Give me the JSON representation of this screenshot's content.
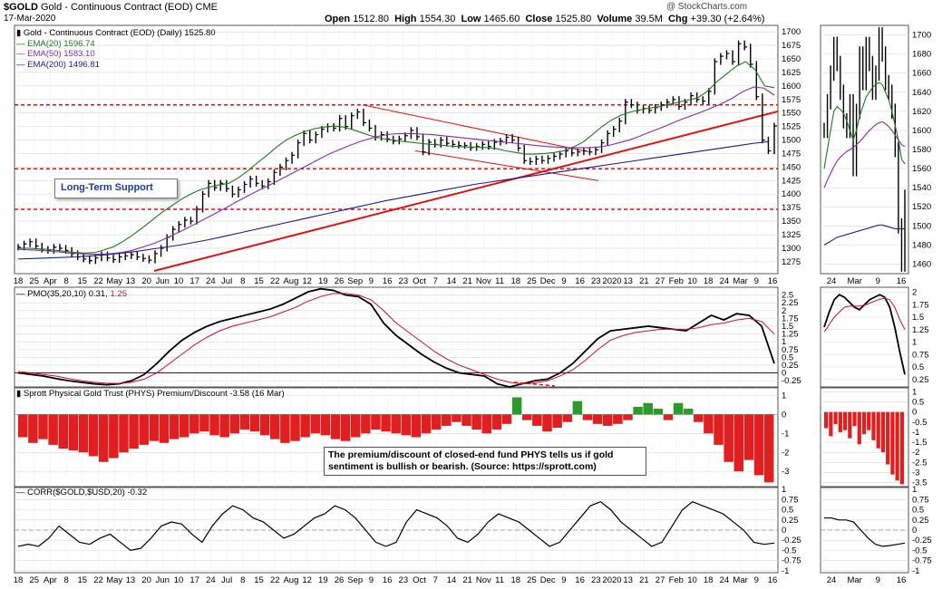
{
  "header": {
    "symbol": "$GOLD",
    "name": "Gold - Continuous Contract (EOD)",
    "exchange": "CME",
    "date": "17-Mar-2020",
    "open_label": "Open",
    "open": "1512.80",
    "high_label": "High",
    "high": "1554.30",
    "low_label": "Low",
    "low": "1465.60",
    "close_label": "Close",
    "close": "1525.80",
    "volume_label": "Volume",
    "volume": "39.5M",
    "chg_label": "Chg",
    "chg": "+39.30 (+2.64%)",
    "watermark": "@ StockCharts.com"
  },
  "colors": {
    "price": "#000000",
    "ema20": "#1a7a1a",
    "ema50": "#8a2aa8",
    "ema200": "#1a1a8a",
    "support": "#e01010",
    "pmo_signal": "#c8102e",
    "bars": "#e02020",
    "bars_positive": "#2a9a2a",
    "grid": "#d8d8d8",
    "zero_line": "#8b0000"
  },
  "legend": {
    "price": "Gold - Continuous Contract (EOD) (Daily) 1525.80",
    "ema20": "EMA(20) 1596.74",
    "ema50": "EMA(50) 1583.10",
    "ema200": "EMA(200) 1496.81",
    "pmo_prefix": "PMO(35,20,10) 0.31,",
    "pmo_signal": "1.25",
    "phys": "Sprott Physical Gold Trust (PHYS) Premium/Discount -3.58 (16 Mar)",
    "corr": "CORR($GOLD,$USD,20) -0.32"
  },
  "annotations": {
    "callout": "Long-Term Support",
    "note": "The premium/discount of closed-end fund PHYS tells us if gold sentiment is bullish or bearish. (Source: https://sprott.com)"
  },
  "x_labels_main": [
    "18",
    "25",
    "Apr",
    "8",
    "15",
    "22",
    "May",
    "13",
    "20",
    "Jun",
    "10",
    "17",
    "24",
    "Jul",
    "8",
    "15",
    "22",
    "Aug",
    "12",
    "19",
    "26",
    "Sep",
    "9",
    "16",
    "23",
    "Oct",
    "7",
    "14",
    "21",
    "Nov",
    "11",
    "18",
    "25",
    "Dec",
    "9",
    "16",
    "23",
    "2020",
    "13",
    "21",
    "27",
    "Feb",
    "10",
    "18",
    "24",
    "Mar",
    "9",
    "16"
  ],
  "x_labels_side": [
    "24",
    "Mar",
    "9",
    "16"
  ],
  "chart_data": [
    {
      "type": "line",
      "title": "Gold - Continuous Contract (EOD) (Daily) 1525.80",
      "y_ticks": [
        1275,
        1300,
        1325,
        1350,
        1375,
        1400,
        1425,
        1450,
        1475,
        1500,
        1525,
        1550,
        1575,
        1600,
        1625,
        1650,
        1675,
        1700
      ],
      "ylim": [
        1253,
        1712
      ],
      "horizontal_lines": [
        1565,
        1447,
        1372
      ],
      "series": [
        {
          "name": "Gold",
          "type": "ohlc-close",
          "values": [
            1302,
            1308,
            1312,
            1304,
            1298,
            1296,
            1302,
            1300,
            1296,
            1290,
            1284,
            1280,
            1277,
            1282,
            1288,
            1282,
            1279,
            1284,
            1286,
            1288,
            1284,
            1281,
            1278,
            1290,
            1300,
            1320,
            1335,
            1344,
            1352,
            1350,
            1372,
            1400,
            1420,
            1412,
            1420,
            1410,
            1400,
            1408,
            1418,
            1428,
            1420,
            1415,
            1423,
            1440,
            1450,
            1462,
            1472,
            1495,
            1512,
            1500,
            1510,
            1520,
            1525,
            1522,
            1540,
            1525,
            1545,
            1552,
            1532,
            1522,
            1505,
            1510,
            1502,
            1498,
            1502,
            1508,
            1518,
            1506,
            1478,
            1496,
            1492,
            1500,
            1494,
            1492,
            1490,
            1490,
            1486,
            1488,
            1492,
            1488,
            1496,
            1498,
            1505,
            1500,
            1485,
            1462,
            1460,
            1465,
            1462,
            1466,
            1470,
            1474,
            1480,
            1476,
            1478,
            1480,
            1478,
            1482,
            1495,
            1512,
            1520,
            1535,
            1570,
            1565,
            1555,
            1558,
            1555,
            1560,
            1565,
            1570,
            1575,
            1562,
            1570,
            1582,
            1575,
            1572,
            1590,
            1645,
            1655,
            1660,
            1645,
            1678,
            1672,
            1640,
            1580,
            1500,
            1480,
            1526
          ]
        },
        {
          "name": "EMA(20)",
          "values": [
            1300,
            1300,
            1299,
            1298,
            1296,
            1294,
            1292,
            1291,
            1292,
            1297,
            1303,
            1313,
            1325,
            1338,
            1352,
            1366,
            1378,
            1390,
            1400,
            1408,
            1413,
            1417,
            1420,
            1430,
            1443,
            1458,
            1472,
            1487,
            1500,
            1509,
            1516,
            1521,
            1524,
            1526,
            1524,
            1519,
            1513,
            1507,
            1503,
            1500,
            1498,
            1496,
            1494,
            1492,
            1491,
            1489,
            1488,
            1487,
            1487,
            1486,
            1484,
            1480,
            1477,
            1474,
            1474,
            1475,
            1477,
            1480,
            1487,
            1496,
            1510,
            1525,
            1537,
            1546,
            1552,
            1556,
            1559,
            1562,
            1566,
            1570,
            1574,
            1578,
            1590,
            1608,
            1622,
            1636,
            1645,
            1630,
            1600,
            1597
          ]
        },
        {
          "name": "EMA(50)",
          "values": [
            1298,
            1297,
            1296,
            1295,
            1293,
            1291,
            1290,
            1289,
            1289,
            1290,
            1292,
            1296,
            1302,
            1308,
            1316,
            1325,
            1334,
            1344,
            1354,
            1364,
            1374,
            1385,
            1395,
            1405,
            1414,
            1424,
            1434,
            1444,
            1454,
            1464,
            1474,
            1482,
            1490,
            1497,
            1503,
            1508,
            1511,
            1512,
            1512,
            1511,
            1510,
            1508,
            1506,
            1504,
            1502,
            1500,
            1498,
            1496,
            1494,
            1492,
            1490,
            1488,
            1487,
            1486,
            1486,
            1486,
            1487,
            1490,
            1495,
            1500,
            1507,
            1515,
            1522,
            1530,
            1538,
            1545,
            1552,
            1560,
            1568,
            1578,
            1590,
            1598,
            1596,
            1583
          ]
        },
        {
          "name": "EMA(200)",
          "values": [
            1280,
            1281,
            1282,
            1283,
            1284,
            1286,
            1288,
            1291,
            1294,
            1298,
            1302,
            1306,
            1311,
            1316,
            1322,
            1328,
            1334,
            1340,
            1346,
            1352,
            1358,
            1364,
            1370,
            1376,
            1382,
            1388,
            1393,
            1398,
            1403,
            1408,
            1413,
            1418,
            1422,
            1426,
            1430,
            1434,
            1438,
            1442,
            1446,
            1450,
            1454,
            1458,
            1462,
            1466,
            1470,
            1474,
            1478,
            1482,
            1486,
            1490,
            1494,
            1497
          ]
        }
      ],
      "y_ticks_side": [
        1460,
        1480,
        1500,
        1520,
        1540,
        1560,
        1580,
        1600,
        1620,
        1640,
        1660,
        1680,
        1700
      ],
      "ylim_side": [
        1450,
        1710
      ]
    },
    {
      "type": "line",
      "title": "PMO(35,20,10) 0.31, 1.25",
      "y_ticks": [
        -0.25,
        0.0,
        0.25,
        0.5,
        0.75,
        1.0,
        1.25,
        1.5,
        1.75,
        2.0,
        2.25,
        2.5
      ],
      "ylim": [
        -0.45,
        2.75
      ],
      "series": [
        {
          "name": "PMO",
          "values": [
            0.0,
            -0.05,
            -0.1,
            -0.18,
            -0.25,
            -0.3,
            -0.35,
            -0.38,
            -0.35,
            -0.25,
            -0.05,
            0.3,
            0.7,
            1.05,
            1.3,
            1.5,
            1.65,
            1.75,
            1.85,
            1.95,
            2.05,
            2.2,
            2.4,
            2.6,
            2.7,
            2.65,
            2.5,
            2.45,
            2.2,
            1.6,
            1.2,
            0.9,
            0.6,
            0.35,
            0.15,
            0.0,
            -0.05,
            -0.1,
            -0.35,
            -0.45,
            -0.35,
            -0.25,
            -0.2,
            0.0,
            0.3,
            0.7,
            1.1,
            1.35,
            1.4,
            1.45,
            1.5,
            1.45,
            1.4,
            1.35,
            1.6,
            1.85,
            1.7,
            1.9,
            1.85,
            1.5,
            0.3
          ]
        },
        {
          "name": "Signal",
          "values": [
            0.05,
            0.0,
            -0.05,
            -0.1,
            -0.18,
            -0.25,
            -0.3,
            -0.33,
            -0.34,
            -0.3,
            -0.2,
            0.0,
            0.3,
            0.6,
            0.9,
            1.15,
            1.35,
            1.5,
            1.6,
            1.7,
            1.8,
            1.95,
            2.1,
            2.3,
            2.45,
            2.55,
            2.55,
            2.5,
            2.35,
            2.0,
            1.6,
            1.3,
            1.0,
            0.7,
            0.45,
            0.25,
            0.1,
            -0.05,
            -0.2,
            -0.3,
            -0.35,
            -0.32,
            -0.25,
            -0.1,
            0.1,
            0.4,
            0.75,
            1.05,
            1.2,
            1.3,
            1.35,
            1.4,
            1.4,
            1.4,
            1.45,
            1.55,
            1.6,
            1.7,
            1.75,
            1.65,
            1.25
          ]
        }
      ],
      "y_ticks_side": [
        0.25,
        0.5,
        0.75,
        1.0,
        1.25,
        1.5,
        1.75,
        2.0
      ],
      "ylim_side": [
        0.1,
        2.1
      ]
    },
    {
      "type": "bar",
      "title": "Sprott Physical Gold Trust (PHYS) Premium/Discount -3.58 (16 Mar)",
      "y_ticks": [
        -3,
        -2,
        -1,
        0,
        1
      ],
      "ylim": [
        -3.8,
        1.4
      ],
      "values": [
        -1.2,
        -1.5,
        -1.3,
        -1.6,
        -1.8,
        -1.9,
        -2.0,
        -2.2,
        -2.5,
        -2.3,
        -2.0,
        -1.8,
        -1.6,
        -1.4,
        -1.5,
        -1.3,
        -1.2,
        -1.0,
        -0.9,
        -1.1,
        -1.2,
        -1.0,
        -0.8,
        -0.9,
        -1.1,
        -1.3,
        -1.5,
        -1.4,
        -1.2,
        -1.0,
        -1.1,
        -1.3,
        -1.4,
        -1.2,
        -1.0,
        -0.8,
        -0.9,
        -1.0,
        -1.1,
        -1.2,
        -1.0,
        -0.8,
        -0.6,
        -0.4,
        -0.6,
        -0.8,
        -1.0,
        -0.8,
        -0.5,
        0.9,
        -0.3,
        -0.6,
        -0.9,
        -0.7,
        -0.4,
        0.7,
        -0.3,
        -0.5,
        -0.6,
        -0.5,
        -0.3,
        0.4,
        0.6,
        0.3,
        -0.3,
        0.6,
        0.3,
        -0.4,
        -1.0,
        -1.6,
        -2.5,
        -3.0,
        -2.4,
        -3.2,
        -3.58
      ],
      "y_ticks_side": [
        -3.5,
        -3.0,
        -2.5,
        -2.0,
        -1.5,
        -1.0,
        -0.5,
        0,
        0.5,
        1.0
      ],
      "ylim_side": [
        -3.7,
        1.2
      ]
    },
    {
      "type": "line",
      "title": "CORR($GOLD,$USD,20) -0.32",
      "y_ticks": [
        -1.0,
        -0.75,
        -0.5,
        -0.25,
        0.0,
        0.25,
        0.5,
        0.75,
        1.0
      ],
      "ylim": [
        -1.05,
        1.05
      ],
      "series": [
        {
          "name": "CORR",
          "values": [
            -0.4,
            -0.35,
            -0.4,
            -0.2,
            0.1,
            -0.1,
            -0.3,
            -0.35,
            -0.2,
            -0.1,
            -0.3,
            -0.5,
            -0.45,
            -0.2,
            0.1,
            0.2,
            0.15,
            -0.1,
            -0.3,
            0.1,
            0.4,
            0.6,
            0.5,
            0.3,
            0.2,
            0.0,
            -0.2,
            -0.1,
            0.1,
            0.3,
            0.4,
            0.6,
            0.5,
            0.3,
            0.0,
            -0.3,
            -0.4,
            -0.3,
            0.2,
            0.5,
            0.4,
            0.3,
            0.1,
            -0.2,
            -0.3,
            -0.1,
            0.2,
            0.4,
            0.3,
            0.2,
            0.0,
            -0.2,
            -0.4,
            -0.3,
            0.0,
            0.3,
            0.6,
            0.7,
            0.5,
            0.2,
            0.0,
            -0.2,
            -0.4,
            -0.3,
            0.1,
            0.5,
            0.7,
            0.6,
            0.5,
            0.4,
            0.2,
            0.0,
            -0.3,
            -0.35,
            -0.32
          ]
        }
      ],
      "y_ticks_side": [
        -1.0,
        -0.75,
        -0.5,
        -0.25,
        0.0,
        0.25,
        0.5,
        0.75,
        1.0
      ],
      "ylim_side": [
        -1.05,
        1.05
      ]
    }
  ]
}
